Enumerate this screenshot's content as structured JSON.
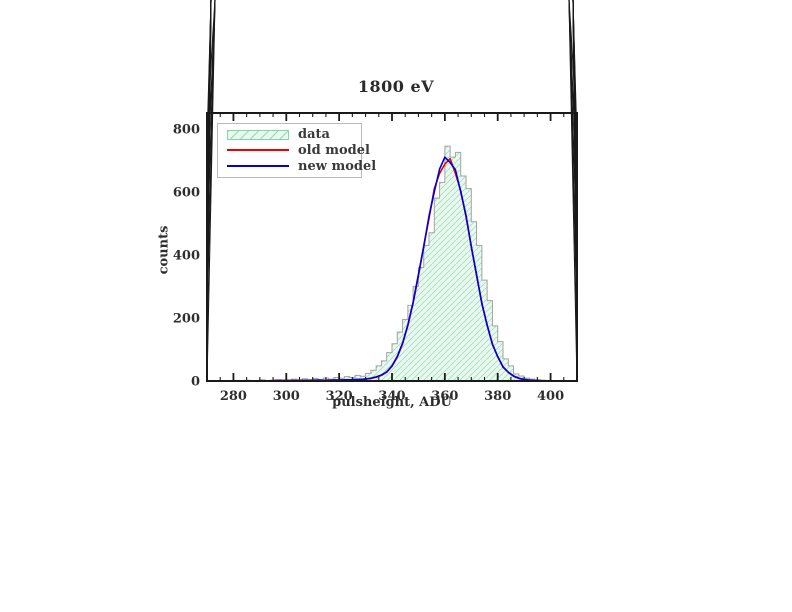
{
  "title": "1800 eV",
  "axes": {
    "xlabel": "pulsheight, ADU",
    "ylabel": "counts"
  },
  "legend": {
    "items": [
      {
        "label": "data",
        "swatch": "hatch"
      },
      {
        "label": "old model",
        "swatch": "line",
        "color": "#ee0000"
      },
      {
        "label": "new model",
        "swatch": "line",
        "color": "#0000dd"
      }
    ]
  },
  "colors": {
    "axis": "#1a1a1a",
    "tick_text": "#2e2e2e",
    "hist_fill": "#eaf8ef",
    "hist_hatch": "#8ce0ae",
    "hist_edge": "#a3a3a3",
    "old_model": "#ee0000",
    "new_model": "#0000dd"
  },
  "chart_data": {
    "type": "bar",
    "subtype": "histogram-with-model-lines",
    "title": "1800 eV",
    "xlabel": "pulsheight, ADU",
    "ylabel": "counts",
    "xlim": [
      270,
      410
    ],
    "ylim": [
      0,
      850
    ],
    "x_major_ticks": [
      280,
      300,
      320,
      340,
      360,
      380,
      400
    ],
    "x_minor_step": 5,
    "y_major_ticks": [
      0,
      200,
      400,
      600,
      800
    ],
    "y_minor_step": 50,
    "grid": false,
    "legend_position": "upper-left",
    "histogram": {
      "name": "data",
      "bin_start": 270,
      "bin_width": 2,
      "counts": [
        0,
        0,
        0,
        0,
        0,
        1,
        0,
        2,
        0,
        1,
        3,
        1,
        2,
        4,
        2,
        3,
        6,
        3,
        7,
        4,
        8,
        5,
        9,
        6,
        11,
        9,
        14,
        11,
        18,
        15,
        24,
        34,
        48,
        64,
        90,
        118,
        155,
        195,
        240,
        300,
        360,
        430,
        470,
        580,
        630,
        745,
        710,
        725,
        650,
        610,
        505,
        430,
        320,
        255,
        175,
        125,
        70,
        48,
        22,
        16,
        9,
        6,
        4,
        2,
        1,
        1,
        0,
        1,
        0,
        0
      ]
    },
    "series": [
      {
        "name": "old model",
        "color": "#ee0000",
        "x_start": 270,
        "x_step": 2,
        "values": [
          0,
          0,
          0,
          0,
          0,
          0,
          0,
          1,
          0,
          0,
          1,
          0,
          1,
          2,
          1,
          2,
          1,
          2,
          2,
          1,
          3,
          2,
          2,
          3,
          3,
          3,
          3,
          4,
          4,
          5,
          6,
          8,
          12,
          18,
          28,
          47,
          76,
          118,
          176,
          248,
          334,
          428,
          515,
          610,
          658,
          688,
          705,
          658,
          604,
          521,
          428,
          334,
          248,
          176,
          118,
          76,
          46,
          27,
          15,
          8,
          4,
          2,
          1,
          1,
          0,
          0,
          0,
          1,
          0,
          0,
          0
        ]
      },
      {
        "name": "new model",
        "color": "#0000dd",
        "x_start": 270,
        "x_step": 2,
        "values": [
          0,
          0,
          0,
          0,
          0,
          0,
          0,
          0,
          1,
          0,
          1,
          1,
          0,
          1,
          2,
          1,
          2,
          1,
          2,
          2,
          2,
          3,
          2,
          2,
          3,
          3,
          4,
          4,
          5,
          5,
          6,
          9,
          13,
          19,
          29,
          48,
          78,
          120,
          178,
          250,
          338,
          425,
          523,
          600,
          672,
          710,
          693,
          670,
          600,
          526,
          425,
          338,
          245,
          178,
          116,
          78,
          44,
          28,
          16,
          9,
          5,
          3,
          2,
          1,
          1,
          0,
          0,
          0,
          0,
          0,
          0
        ]
      }
    ]
  }
}
